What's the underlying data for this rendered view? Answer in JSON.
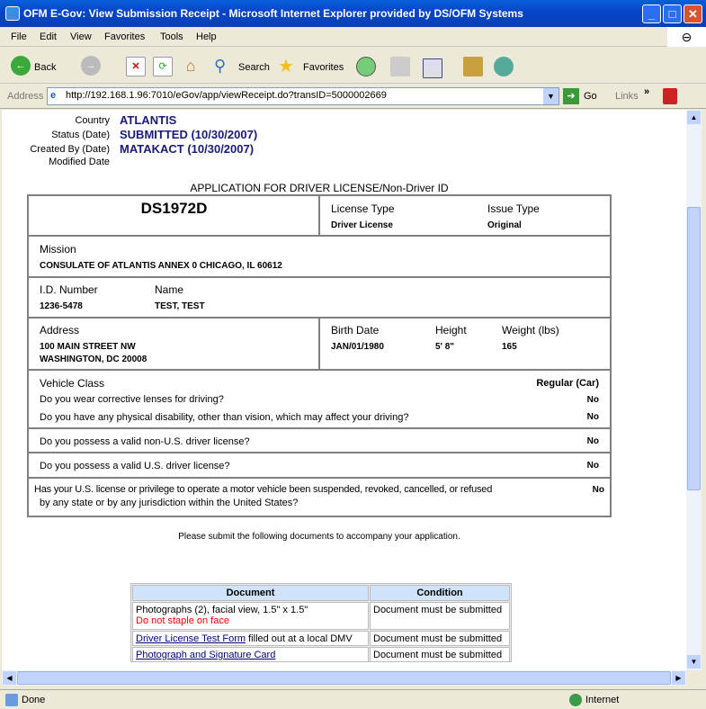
{
  "window": {
    "title": "OFM E-Gov: View Submission Receipt - Microsoft Internet Explorer provided by DS/OFM Systems"
  },
  "menu": [
    "File",
    "Edit",
    "View",
    "Favorites",
    "Tools",
    "Help"
  ],
  "toolbar": {
    "back": "Back",
    "search": "Search",
    "favorites": "Favorites"
  },
  "address": {
    "label": "Address",
    "url": "http://192.168.1.96:7010/eGov/app/viewReceipt.do?transID=5000002669",
    "go": "Go",
    "links": "Links"
  },
  "meta": {
    "country_label": "Country",
    "country": "ATLANTIS",
    "status_label": "Status (Date)",
    "status": "SUBMITTED (10/30/2007)",
    "created_label": "Created By (Date)",
    "created": "MATAKACT (10/30/2007)",
    "modified_label": "Modified Date"
  },
  "form": {
    "title": "APPLICATION FOR DRIVER LICENSE/Non-Driver ID",
    "code": "DS1972D",
    "license_type_label": "License Type",
    "license_type": "Driver License",
    "issue_type_label": "Issue Type",
    "issue_type": "Original",
    "mission_label": "Mission",
    "mission": "CONSULATE OF ATLANTIS ANNEX 0 CHICAGO, IL 60612",
    "id_label": "I.D. Number",
    "id": "1236-5478",
    "name_label": "Name",
    "name": "TEST, TEST",
    "address_label": "Address",
    "address_line1": "100 MAIN STREET NW",
    "address_line2": "WASHINGTON, DC 20008",
    "birth_label": "Birth Date",
    "birth": "JAN/01/1980",
    "height_label": "Height",
    "height": "5' 8\"",
    "weight_label": "Weight (lbs)",
    "weight": "165",
    "vehicle_label": "Vehicle Class",
    "vehicle": "Regular (Car)",
    "questions": [
      {
        "q": "Do you wear corrective lenses for driving?",
        "a": "No"
      },
      {
        "q": "Do you have any physical disability, other than vision, which may affect your driving?",
        "a": "No"
      },
      {
        "q": "Do you possess a valid non-U.S. driver license?",
        "a": "No"
      },
      {
        "q": "Do you possess a valid U.S. driver license?",
        "a": "No"
      },
      {
        "q": "Has your U.S. license or privilege to operate a motor vehicle been suspended, revoked, cancelled, or refused",
        "q2": "by any state or by any jurisdiction within the United States?",
        "a": "No"
      }
    ]
  },
  "documents": {
    "intro": "Please submit the following documents to accompany your application.",
    "headers": [
      "Document",
      "Condition"
    ],
    "rows": [
      {
        "doc": "Photographs (2), facial view, 1.5\" x 1.5\"",
        "note": "Do not staple on face",
        "condition": "Document must be submitted"
      },
      {
        "link": "Driver License Test Form",
        "doc": " filled out at a local DMV",
        "condition": "Document must be submitted"
      },
      {
        "link": "Photograph and Signature Card",
        "condition": "Document must be submitted"
      }
    ]
  },
  "status": {
    "text": "Done",
    "zone": "Internet"
  }
}
